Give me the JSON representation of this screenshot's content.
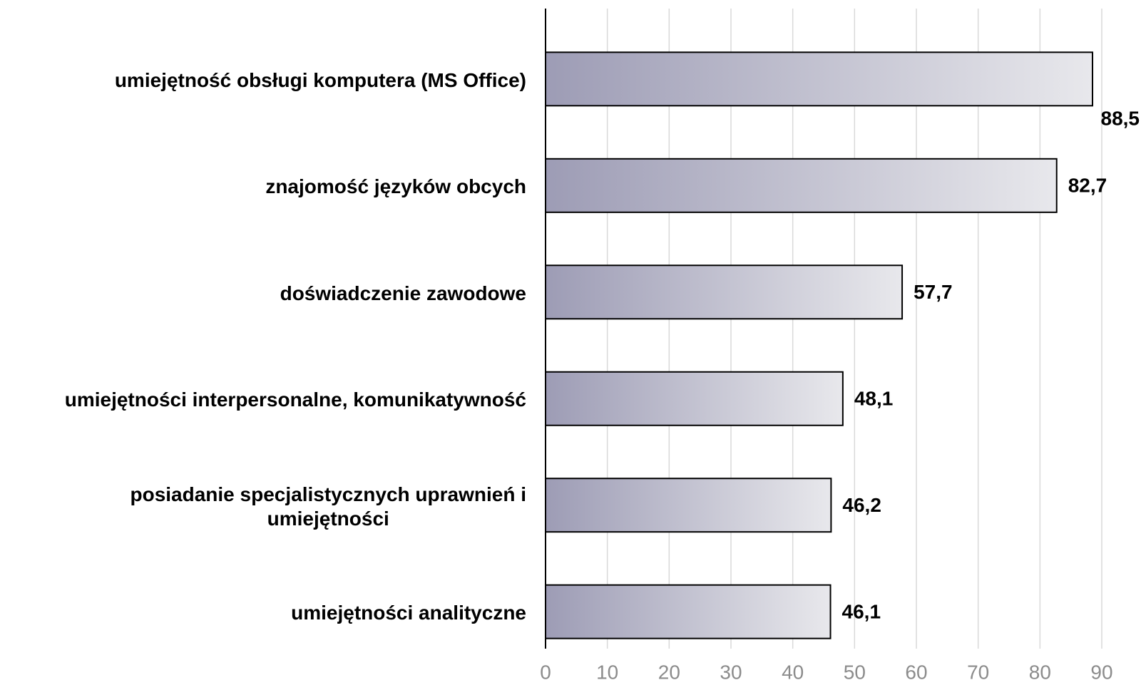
{
  "chart_data": {
    "type": "bar",
    "orientation": "horizontal",
    "categories": [
      "umiejętność obsługi komputera (MS Office)",
      "znajomość języków obcych",
      "doświadczenie zawodowe",
      "umiejętności interpersonalne, komunikatywność",
      "posiadanie specjalistycznych uprawnień i\numiejętności",
      "umiejętności analityczne"
    ],
    "values": [
      88.5,
      82.7,
      57.7,
      48.1,
      46.2,
      46.1
    ],
    "value_labels": [
      "88,5",
      "82,7",
      "57,7",
      "48,1",
      "46,2",
      "46,1"
    ],
    "color": [
      "#9d9cb5",
      "#e8e8ec"
    ],
    "xlim": [
      0,
      90
    ],
    "xticks": [
      0,
      10,
      20,
      30,
      40,
      50,
      60,
      70,
      80,
      90
    ],
    "grid": true
  }
}
